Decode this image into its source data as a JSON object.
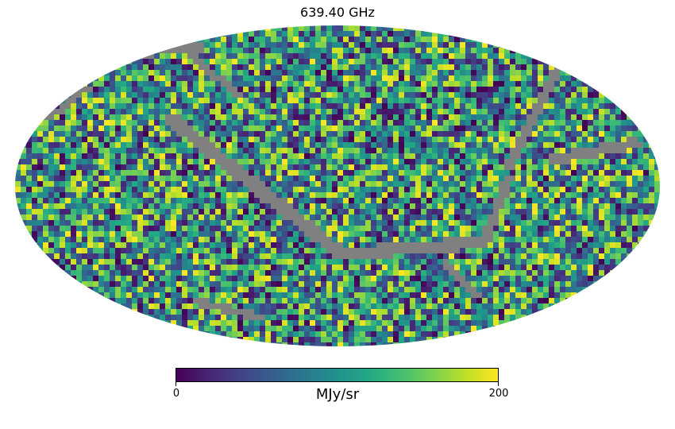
{
  "chart_data": {
    "type": "heatmap",
    "projection": "mollweide",
    "title": "639.40 GHz",
    "colormap": "viridis",
    "masked_color": "#808080",
    "colorbar": {
      "min": 0,
      "max": 200,
      "min_label": "0",
      "max_label": "200",
      "unit": "MJy/sr",
      "orientation": "horizontal",
      "placement": "bottom"
    },
    "graticule": false
  }
}
